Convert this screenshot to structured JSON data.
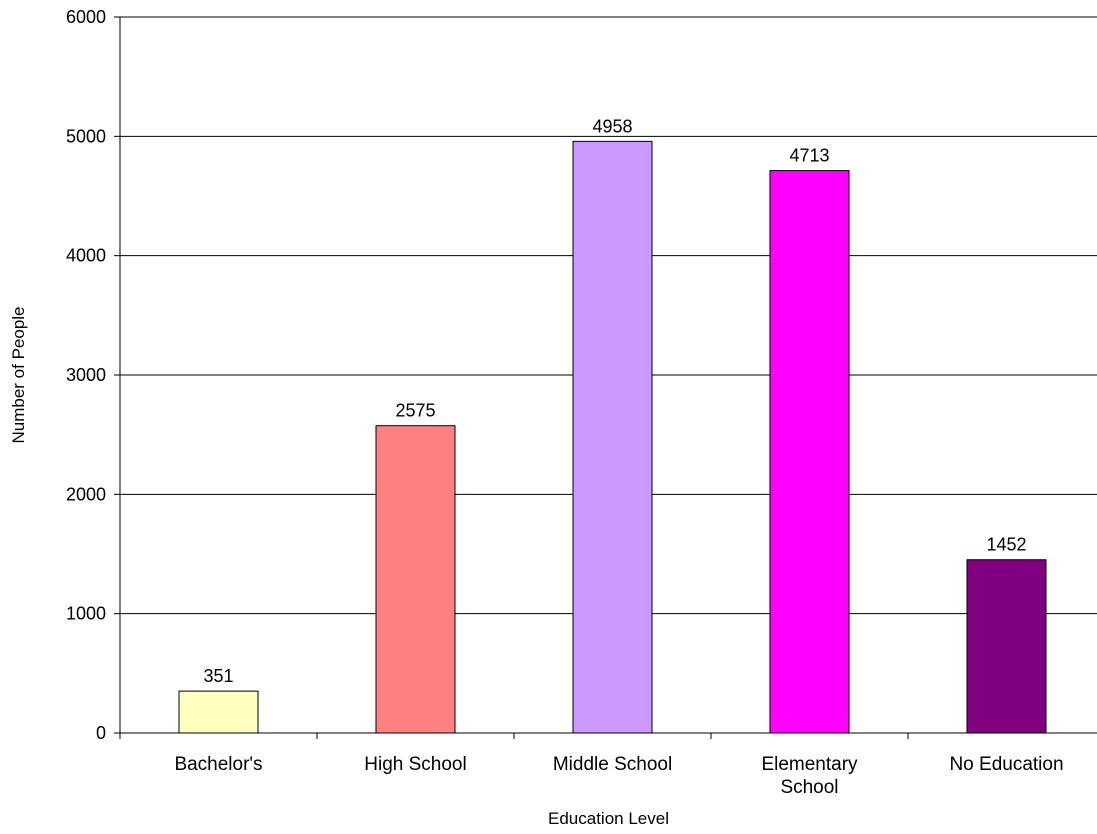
{
  "chart_data": {
    "type": "bar",
    "title": "",
    "xlabel": "Education Level",
    "ylabel": "Number of People",
    "categories": [
      "Bachelor's",
      "High School",
      "Middle School",
      "Elementary School",
      "No Education"
    ],
    "category_lines": [
      [
        "Bachelor's"
      ],
      [
        "High School"
      ],
      [
        "Middle School"
      ],
      [
        "Elementary",
        "School"
      ],
      [
        "No Education"
      ]
    ],
    "values": [
      351,
      2575,
      4958,
      4713,
      1452
    ],
    "data_labels": [
      "351",
      "2575",
      "4958",
      "4713",
      "1452"
    ],
    "colors": [
      "#FFFFC0",
      "#FF8080",
      "#CC99FF",
      "#FF00FF",
      "#800080"
    ],
    "ylim": [
      0,
      6000
    ],
    "yticks": [
      0,
      1000,
      2000,
      3000,
      4000,
      5000,
      6000
    ],
    "ytick_labels": [
      "0",
      "1000",
      "2000",
      "3000",
      "4000",
      "5000",
      "6000"
    ],
    "grid": true,
    "legend": "none"
  }
}
